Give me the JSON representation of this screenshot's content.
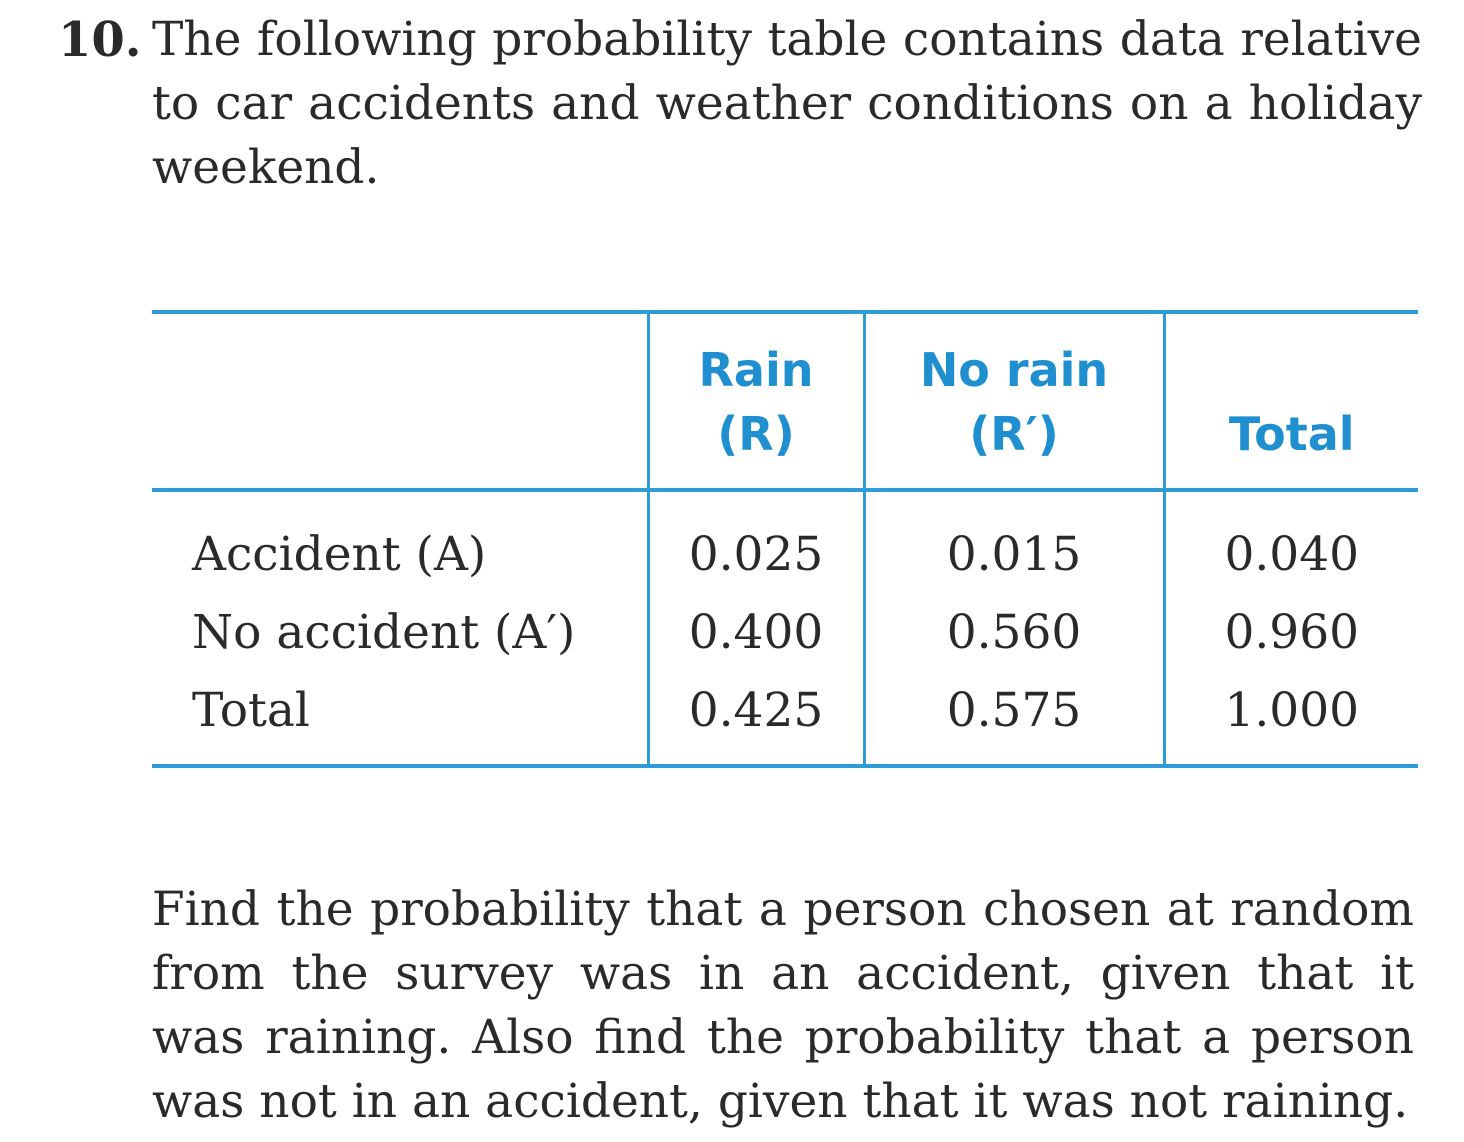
{
  "problem": {
    "number": "10.",
    "text": "The following probability table contains data relative to car accidents and weather conditions on a holiday weekend."
  },
  "table": {
    "columns": [
      {
        "line1": "Rain",
        "line2": "(R)"
      },
      {
        "line1": "No rain",
        "line2": "(R′)"
      },
      {
        "line1": "",
        "line2": "Total"
      }
    ],
    "rows": [
      {
        "label": "Accident (A)",
        "values": [
          "0.025",
          "0.015",
          "0.040"
        ]
      },
      {
        "label": "No accident (A′)",
        "values": [
          "0.400",
          "0.560",
          "0.960"
        ]
      },
      {
        "label": "Total",
        "values": [
          "0.425",
          "0.575",
          "1.000"
        ]
      }
    ],
    "rule_color": "#2f9bd7",
    "header_color": "#1f8fd0"
  },
  "question": "Find the probability that a person chosen at random from the survey was in an accident, given that it was raining. Also find the probability that a person was not in an accident, given that it was not raining."
}
